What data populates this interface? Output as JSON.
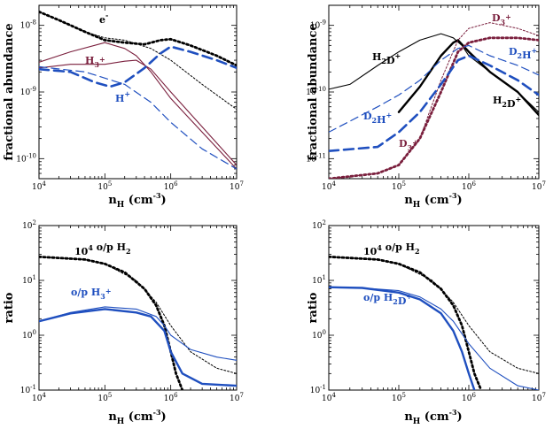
{
  "chart_data": [
    {
      "type": "line",
      "panel": "top-left",
      "xscale": "log",
      "yscale": "log",
      "xlim": [
        10000,
        10000000
      ],
      "ylim": [
        5e-11,
        2e-08
      ],
      "xticks": [
        "10^4",
        "10^5",
        "10^6",
        "10^7"
      ],
      "yticks": [
        "10^-8",
        "10^-9",
        "10^-10"
      ],
      "xlabel": "n_H (cm^-3)",
      "ylabel": "fractional abundance",
      "annotations": [
        {
          "text": "e-",
          "color": "#000000"
        },
        {
          "text": "H3+",
          "color": "#7a1f3d"
        },
        {
          "text": "H+",
          "color": "#1f4fbf"
        }
      ],
      "series": [
        {
          "color": "#000000",
          "style": "thick-dotted",
          "x": [
            10000,
            20000,
            50000,
            100000,
            200000,
            400000,
            700000,
            1000000,
            2000000,
            5000000,
            10000000
          ],
          "y": [
            1.6e-08,
            1.2e-08,
            8e-09,
            6e-09,
            5.5e-09,
            5.2e-09,
            6e-09,
            6.2e-09,
            5e-09,
            3.5e-09,
            2.5e-09
          ]
        },
        {
          "color": "#000000",
          "style": "thin-dotted",
          "x": [
            10000,
            50000,
            100000,
            200000,
            500000,
            1000000,
            3000000,
            10000000
          ],
          "y": [
            1.6e-08,
            8e-09,
            6.5e-09,
            6e-09,
            4.5e-09,
            3e-09,
            1.3e-09,
            5.5e-10
          ]
        },
        {
          "color": "#7a1f3d",
          "style": "solid",
          "x": [
            10000,
            30000,
            100000,
            200000,
            300000,
            500000,
            1000000,
            3000000,
            10000000
          ],
          "y": [
            2.8e-09,
            4e-09,
            5.5e-09,
            4.5e-09,
            3.5e-09,
            2e-09,
            8e-10,
            2.5e-10,
            7e-11
          ]
        },
        {
          "color": "#7a1f3d",
          "style": "solid",
          "x": [
            10000,
            30000,
            100000,
            200000,
            300000,
            500000,
            1000000,
            3000000,
            10000000
          ],
          "y": [
            2.3e-09,
            2.6e-09,
            2.6e-09,
            2.9e-09,
            3e-09,
            2.2e-09,
            1e-09,
            3e-10,
            8e-11
          ]
        },
        {
          "color": "#1f4fbf",
          "style": "thick-dashed",
          "x": [
            10000,
            30000,
            70000,
            120000,
            200000,
            400000,
            700000,
            1000000,
            2000000,
            5000000,
            10000000
          ],
          "y": [
            2.2e-09,
            2e-09,
            1.4e-09,
            1.2e-09,
            1.4e-09,
            2.3e-09,
            3.8e-09,
            4.8e-09,
            4e-09,
            3e-09,
            2.3e-09
          ]
        },
        {
          "color": "#1f4fbf",
          "style": "dashed",
          "x": [
            10000,
            50000,
            200000,
            500000,
            1000000,
            3000000,
            10000000
          ],
          "y": [
            2.4e-09,
            2e-09,
            1.3e-09,
            7e-10,
            3.5e-10,
            1.4e-10,
            7e-11
          ]
        }
      ]
    },
    {
      "type": "line",
      "panel": "top-right",
      "xscale": "log",
      "yscale": "log",
      "xlim": [
        10000,
        10000000
      ],
      "ylim": [
        5e-12,
        2e-09
      ],
      "xticks": [
        "10^4",
        "10^5",
        "10^6",
        "10^7"
      ],
      "yticks": [
        "10^-9",
        "10^-10",
        "10^-11"
      ],
      "xlabel": "n_H (cm^-3)",
      "ylabel": "fractional abundance",
      "annotations": [
        {
          "text": "D3+",
          "color": "#7a1f3d"
        },
        {
          "text": "H2D+",
          "color": "#000000"
        },
        {
          "text": "D2H+",
          "color": "#1f4fbf"
        },
        {
          "text": "D2H+",
          "color": "#1f4fbf"
        },
        {
          "text": "D3+",
          "color": "#7a1f3d"
        },
        {
          "text": "H2D+",
          "color": "#000000"
        }
      ],
      "series": [
        {
          "color": "#000000",
          "style": "solid",
          "x": [
            10000,
            20000,
            50000,
            100000,
            200000,
            400000,
            600000,
            800000,
            1000000,
            2000000,
            5000000,
            10000000
          ],
          "y": [
            1.1e-10,
            1.3e-10,
            2.5e-10,
            4e-10,
            6e-10,
            7.5e-10,
            6.5e-10,
            5e-10,
            3.5e-10,
            2e-10,
            1e-10,
            5e-11
          ]
        },
        {
          "color": "#000000",
          "style": "thick-solid",
          "x": [
            100000,
            200000,
            400000,
            600000,
            700000,
            1000000,
            2000000,
            5000000,
            10000000
          ],
          "y": [
            5e-11,
            1.2e-10,
            3.5e-10,
            5.5e-10,
            6e-10,
            4e-10,
            2e-10,
            1e-10,
            4.5e-11
          ]
        },
        {
          "color": "#7a1f3d",
          "style": "thin-dotted",
          "x": [
            10000,
            50000,
            100000,
            200000,
            400000,
            700000,
            1000000,
            2000000,
            5000000,
            10000000
          ],
          "y": [
            5e-12,
            6e-12,
            8e-12,
            2e-11,
            1.5e-10,
            6e-10,
            9e-10,
            1.1e-09,
            9e-10,
            7e-10
          ]
        },
        {
          "color": "#7a1f3d",
          "style": "thick-dotted",
          "x": [
            10000,
            50000,
            100000,
            200000,
            400000,
            700000,
            1000000,
            2000000,
            5000000,
            10000000
          ],
          "y": [
            5e-12,
            6e-12,
            8e-12,
            2e-11,
            1e-10,
            4e-10,
            5.5e-10,
            6.5e-10,
            6.5e-10,
            6e-10
          ]
        },
        {
          "color": "#1f4fbf",
          "style": "dashed",
          "x": [
            10000,
            50000,
            100000,
            200000,
            400000,
            700000,
            1000000,
            2000000,
            5000000,
            10000000
          ],
          "y": [
            2.5e-11,
            6e-11,
            9e-11,
            1.5e-10,
            3e-10,
            4.5e-10,
            5e-10,
            3.5e-10,
            2.5e-10,
            1.8e-10
          ]
        },
        {
          "color": "#1f4fbf",
          "style": "thick-dashed",
          "x": [
            10000,
            50000,
            100000,
            200000,
            400000,
            700000,
            1000000,
            2000000,
            5000000,
            10000000
          ],
          "y": [
            1.3e-11,
            1.5e-11,
            2.5e-11,
            5e-11,
            1.3e-10,
            3e-10,
            3.5e-10,
            2.5e-10,
            1.5e-10,
            9e-11
          ]
        }
      ]
    },
    {
      "type": "line",
      "panel": "bottom-left",
      "xscale": "log",
      "yscale": "log",
      "xlim": [
        10000,
        10000000
      ],
      "ylim": [
        0.1,
        100
      ],
      "xticks": [
        "10^4",
        "10^5",
        "10^6",
        "10^7"
      ],
      "yticks": [
        "10^2",
        "10^1",
        "10^0",
        "10^-1"
      ],
      "xlabel": "n_H (cm^-3)",
      "ylabel": "ratio",
      "annotations": [
        {
          "text": "10^4 o/p H2",
          "color": "#000000"
        },
        {
          "text": "o/p H3+",
          "color": "#1f4fbf"
        }
      ],
      "series": [
        {
          "color": "#000000",
          "style": "thick-dotted",
          "x": [
            10000,
            50000,
            100000,
            200000,
            400000,
            600000,
            800000,
            1000000,
            1200000,
            1500000
          ],
          "y": [
            27,
            24,
            20,
            14,
            7,
            3.5,
            1.5,
            0.5,
            0.2,
            0.1
          ]
        },
        {
          "color": "#000000",
          "style": "thin-dotted",
          "x": [
            10000,
            50000,
            100000,
            300000,
            600000,
            1000000,
            2000000,
            5000000,
            10000000
          ],
          "y": [
            27,
            24,
            20,
            10,
            4,
            1.5,
            0.5,
            0.25,
            0.2
          ]
        },
        {
          "color": "#1f4fbf",
          "style": "thick-solid",
          "x": [
            10000,
            30000,
            100000,
            300000,
            500000,
            800000,
            1000000,
            1500000,
            3000000,
            10000000
          ],
          "y": [
            1.8,
            2.5,
            3,
            2.6,
            2.2,
            1.2,
            0.5,
            0.2,
            0.13,
            0.12
          ]
        },
        {
          "color": "#1f4fbf",
          "style": "solid",
          "x": [
            10000,
            30000,
            100000,
            300000,
            600000,
            800000,
            1000000,
            2000000,
            5000000,
            10000000
          ],
          "y": [
            1.8,
            2.6,
            3.3,
            3,
            2.2,
            1.5,
            1,
            0.55,
            0.4,
            0.35
          ]
        }
      ]
    },
    {
      "type": "line",
      "panel": "bottom-right",
      "xscale": "log",
      "yscale": "log",
      "xlim": [
        10000,
        10000000
      ],
      "ylim": [
        0.1,
        100
      ],
      "xticks": [
        "10^4",
        "10^5",
        "10^6",
        "10^7"
      ],
      "yticks": [
        "10^2",
        "10^1",
        "10^0",
        "10^-1"
      ],
      "xlabel": "n_H (cm^-3)",
      "ylabel": "ratio",
      "annotations": [
        {
          "text": "10^4 o/p H2",
          "color": "#000000"
        },
        {
          "text": "o/p H2D+",
          "color": "#1f4fbf"
        }
      ],
      "series": [
        {
          "color": "#000000",
          "style": "thick-dotted",
          "x": [
            10000,
            50000,
            100000,
            200000,
            400000,
            600000,
            800000,
            1000000,
            1200000,
            1500000
          ],
          "y": [
            27,
            24,
            20,
            14,
            7,
            3.5,
            1.5,
            0.5,
            0.2,
            0.1
          ]
        },
        {
          "color": "#000000",
          "style": "thin-dotted",
          "x": [
            10000,
            50000,
            100000,
            300000,
            600000,
            1000000,
            2000000,
            5000000,
            10000000
          ],
          "y": [
            27,
            24,
            20,
            10,
            4,
            1.5,
            0.5,
            0.25,
            0.2
          ]
        },
        {
          "color": "#1f4fbf",
          "style": "thick-solid",
          "x": [
            10000,
            30000,
            100000,
            200000,
            400000,
            600000,
            800000,
            1000000,
            1200000
          ],
          "y": [
            7.5,
            7.3,
            6,
            4.5,
            2.5,
            1.2,
            0.5,
            0.2,
            0.1
          ]
        },
        {
          "color": "#1f4fbf",
          "style": "solid",
          "x": [
            10000,
            30000,
            100000,
            200000,
            400000,
            600000,
            1000000,
            2000000,
            5000000,
            10000000
          ],
          "y": [
            7.5,
            7.3,
            6.5,
            5,
            3,
            1.8,
            0.7,
            0.25,
            0.12,
            0.1
          ]
        }
      ]
    }
  ]
}
